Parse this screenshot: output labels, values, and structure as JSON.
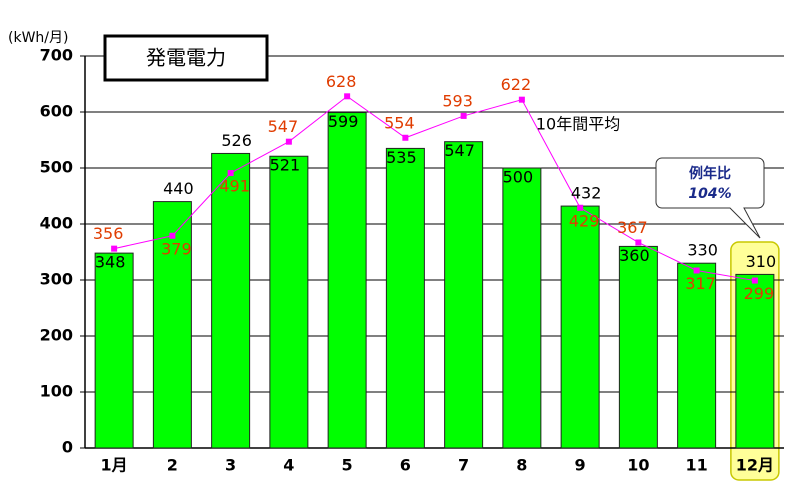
{
  "chart_data": {
    "type": "bar",
    "title": "発電電力",
    "y_label": "(kWh/月)",
    "categories": [
      "1月",
      "2",
      "3",
      "4",
      "5",
      "6",
      "7",
      "8",
      "9",
      "10",
      "11",
      "12月"
    ],
    "series": [
      {
        "type": "bar",
        "color": "#00ff00",
        "values": [
          348,
          440,
          526,
          521,
          599,
          535,
          547,
          500,
          432,
          360,
          330,
          310
        ]
      },
      {
        "type": "line",
        "name": "10年間平均",
        "color": "#ff00ff",
        "values": [
          356,
          379,
          491,
          547,
          628,
          554,
          593,
          622,
          429,
          367,
          317,
          299
        ]
      }
    ],
    "ylim": [
      0,
      700
    ],
    "yticks": [
      0,
      100,
      200,
      300,
      400,
      500,
      600,
      700
    ],
    "grid": true,
    "callout": {
      "title": "例年比",
      "text": "104%"
    }
  }
}
